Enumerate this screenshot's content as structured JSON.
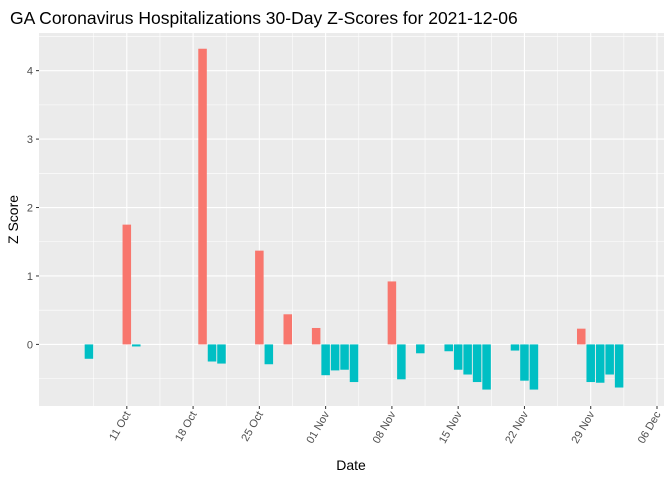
{
  "chart_data": {
    "type": "bar",
    "title": "GA Coronavirus Hospitalizations 30-Day Z-Scores for 2021-12-06",
    "xlabel": "Date",
    "ylabel": "Z Score",
    "ylim": [
      -0.9,
      4.55
    ],
    "xlim": [
      "2021-10-05",
      "2021-12-06"
    ],
    "yticks": [
      0,
      1,
      2,
      3,
      4
    ],
    "xticks": [
      {
        "date": "2021-10-11",
        "label": "11 Oct"
      },
      {
        "date": "2021-10-18",
        "label": "18 Oct"
      },
      {
        "date": "2021-10-25",
        "label": "25 Oct"
      },
      {
        "date": "2021-11-01",
        "label": "01 Nov"
      },
      {
        "date": "2021-11-08",
        "label": "08 Nov"
      },
      {
        "date": "2021-11-15",
        "label": "15 Nov"
      },
      {
        "date": "2021-11-22",
        "label": "22 Nov"
      },
      {
        "date": "2021-11-29",
        "label": "29 Nov"
      },
      {
        "date": "2021-12-06",
        "label": "06 Dec"
      }
    ],
    "colors": {
      "positive": "#F8766D",
      "negative": "#00BFC4",
      "panel": "#EBEBEB",
      "grid": "#FFFFFF"
    },
    "grid": true,
    "legend": "none",
    "bars": [
      {
        "date": "2021-10-07",
        "value": -0.21
      },
      {
        "date": "2021-10-11",
        "value": 1.75
      },
      {
        "date": "2021-10-12",
        "value": -0.03
      },
      {
        "date": "2021-10-19",
        "value": 4.32
      },
      {
        "date": "2021-10-20",
        "value": -0.25
      },
      {
        "date": "2021-10-21",
        "value": -0.28
      },
      {
        "date": "2021-10-25",
        "value": 1.37
      },
      {
        "date": "2021-10-26",
        "value": -0.29
      },
      {
        "date": "2021-10-28",
        "value": 0.44
      },
      {
        "date": "2021-10-31",
        "value": 0.24
      },
      {
        "date": "2021-11-01",
        "value": -0.45
      },
      {
        "date": "2021-11-02",
        "value": -0.38
      },
      {
        "date": "2021-11-03",
        "value": -0.37
      },
      {
        "date": "2021-11-04",
        "value": -0.55
      },
      {
        "date": "2021-11-08",
        "value": 0.92
      },
      {
        "date": "2021-11-09",
        "value": -0.51
      },
      {
        "date": "2021-11-11",
        "value": -0.13
      },
      {
        "date": "2021-11-14",
        "value": -0.1
      },
      {
        "date": "2021-11-15",
        "value": -0.37
      },
      {
        "date": "2021-11-16",
        "value": -0.44
      },
      {
        "date": "2021-11-17",
        "value": -0.55
      },
      {
        "date": "2021-11-18",
        "value": -0.66
      },
      {
        "date": "2021-11-21",
        "value": -0.09
      },
      {
        "date": "2021-11-22",
        "value": -0.53
      },
      {
        "date": "2021-11-23",
        "value": -0.66
      },
      {
        "date": "2021-11-28",
        "value": 0.23
      },
      {
        "date": "2021-11-29",
        "value": -0.55
      },
      {
        "date": "2021-11-30",
        "value": -0.56
      },
      {
        "date": "2021-12-01",
        "value": -0.44
      },
      {
        "date": "2021-12-02",
        "value": -0.63
      }
    ]
  }
}
